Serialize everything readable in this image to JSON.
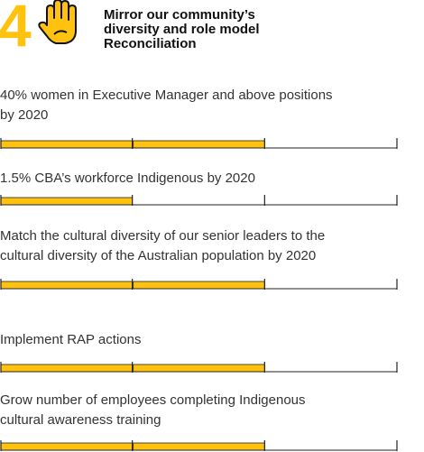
{
  "header": {
    "number": "4",
    "title_lines": [
      "Mirror our community’s",
      "diversity and role model",
      "Reconciliation"
    ]
  },
  "segments": 3,
  "items": [
    {
      "lines": [
        "40% women in Executive Manager and above positions",
        "by 2020"
      ],
      "filled": 2
    },
    {
      "lines": [
        "1.5% CBA’s workforce Indigenous by 2020"
      ],
      "filled": 1
    },
    {
      "lines": [
        "Match the cultural diversity of our senior leaders to the",
        "cultural diversity of the Australian population by 2020"
      ],
      "filled": 2
    },
    {
      "lines": [
        "Implement RAP actions"
      ],
      "filled": 2
    },
    {
      "lines": [
        "Grow number of employees completing Indigenous",
        "cultural awareness training"
      ],
      "filled": 2
    }
  ]
}
